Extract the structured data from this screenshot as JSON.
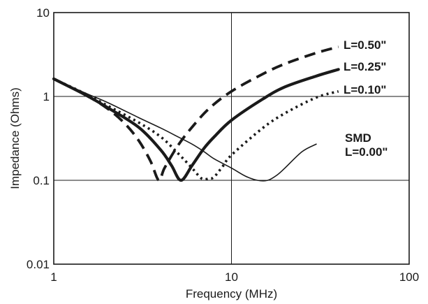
{
  "chart_data": {
    "type": "line",
    "xlabel": "Frequency (MHz)",
    "ylabel": "Impedance (Ohms)",
    "xscale": "log",
    "yscale": "log",
    "xlim": [
      1,
      100
    ],
    "ylim": [
      0.01,
      10
    ],
    "x_ticks": [
      "1",
      "10",
      "100"
    ],
    "y_ticks": [
      "0.01",
      "0.1",
      "1",
      "10"
    ],
    "grid": "major",
    "series": [
      {
        "label_lines": [
          "L=0.50\""
        ],
        "style": "dashed",
        "points": [
          [
            1,
            1.62
          ],
          [
            1.5,
            1.05
          ],
          [
            2,
            0.72
          ],
          [
            2.5,
            0.48
          ],
          [
            3,
            0.3
          ],
          [
            3.5,
            0.17
          ],
          [
            3.9,
            0.1
          ],
          [
            4.2,
            0.14
          ],
          [
            5,
            0.26
          ],
          [
            6,
            0.43
          ],
          [
            7.5,
            0.72
          ],
          [
            10,
            1.15
          ],
          [
            15,
            1.85
          ],
          [
            20,
            2.45
          ],
          [
            30,
            3.3
          ],
          [
            40,
            3.9
          ]
        ]
      },
      {
        "label_lines": [
          "L=0.25\""
        ],
        "style": "solid-thick",
        "points": [
          [
            1,
            1.62
          ],
          [
            1.5,
            1.05
          ],
          [
            2,
            0.74
          ],
          [
            3,
            0.43
          ],
          [
            4,
            0.23
          ],
          [
            4.6,
            0.15
          ],
          [
            5.2,
            0.1
          ],
          [
            6,
            0.15
          ],
          [
            7,
            0.24
          ],
          [
            8,
            0.33
          ],
          [
            10,
            0.52
          ],
          [
            15,
            0.93
          ],
          [
            20,
            1.3
          ],
          [
            30,
            1.75
          ],
          [
            40,
            2.1
          ]
        ]
      },
      {
        "label_lines": [
          "L=0.10\""
        ],
        "style": "dotted",
        "points": [
          [
            1,
            1.62
          ],
          [
            1.5,
            1.08
          ],
          [
            2,
            0.78
          ],
          [
            3,
            0.49
          ],
          [
            4,
            0.33
          ],
          [
            5,
            0.21
          ],
          [
            6,
            0.14
          ],
          [
            6.8,
            0.105
          ],
          [
            7.5,
            0.105
          ],
          [
            8,
            0.11
          ],
          [
            9,
            0.15
          ],
          [
            10,
            0.2
          ],
          [
            15,
            0.42
          ],
          [
            20,
            0.63
          ],
          [
            30,
            0.97
          ],
          [
            40,
            1.15
          ]
        ]
      },
      {
        "label_lines": [
          "SMD",
          "L=0.00\""
        ],
        "style": "solid-thin",
        "points": [
          [
            1,
            1.62
          ],
          [
            1.5,
            1.1
          ],
          [
            2,
            0.85
          ],
          [
            3,
            0.56
          ],
          [
            4,
            0.42
          ],
          [
            5,
            0.33
          ],
          [
            6,
            0.27
          ],
          [
            7,
            0.22
          ],
          [
            8,
            0.18
          ],
          [
            10,
            0.14
          ],
          [
            12,
            0.112
          ],
          [
            14,
            0.1
          ],
          [
            16,
            0.1
          ],
          [
            18,
            0.115
          ],
          [
            20,
            0.14
          ],
          [
            25,
            0.22
          ],
          [
            30,
            0.27
          ]
        ]
      }
    ]
  }
}
